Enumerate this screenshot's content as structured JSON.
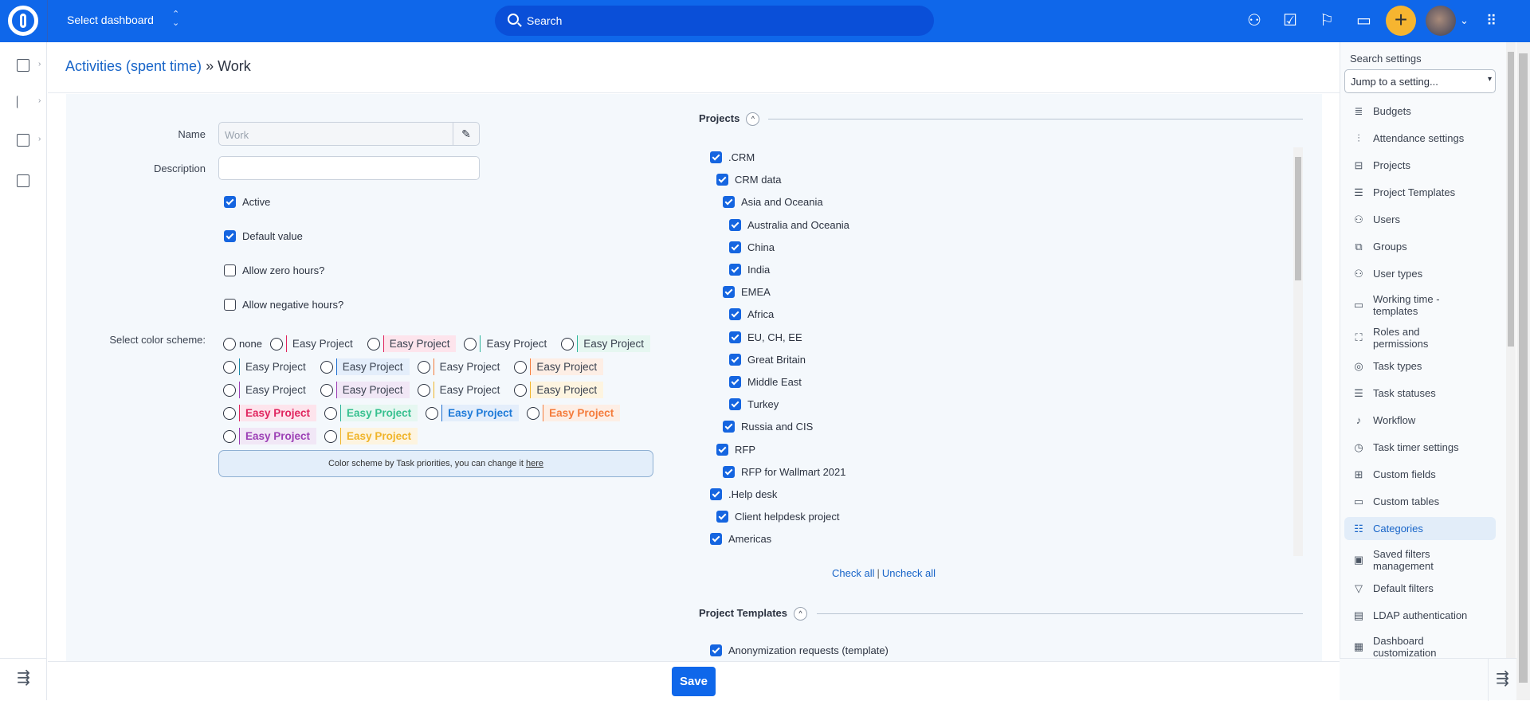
{
  "topbar": {
    "dashboard_label": "Select dashboard",
    "search_placeholder": "Search",
    "icons": [
      "user-icon",
      "tasks-icon",
      "flag-icon",
      "calendar-icon",
      "plus-icon",
      "avatar",
      "apps-grid-icon"
    ]
  },
  "breadcrumb": {
    "parent": "Activities (spent time)",
    "separator": "»",
    "current": "Work"
  },
  "form": {
    "name_label": "Name",
    "name_value": "Work",
    "description_label": "Description",
    "description_value": "",
    "checkboxes": [
      {
        "label": "Active",
        "checked": true
      },
      {
        "label": "Default value",
        "checked": true
      },
      {
        "label": "Allow zero hours?",
        "checked": false
      },
      {
        "label": "Allow negative hours?",
        "checked": false
      }
    ],
    "color_scheme_label": "Select color scheme:",
    "color_scheme_rows": [
      [
        {
          "label": "none"
        },
        {
          "label": "Easy Project",
          "border": "#e0245e",
          "bg": "",
          "text": "#3a4250",
          "bold": false
        },
        {
          "label": "Easy Project",
          "border": "#e0245e",
          "bg": "#fde4ec",
          "text": "#3a4250",
          "bold": false
        },
        {
          "label": "Easy Project",
          "border": "#2bb39a",
          "bg": "",
          "text": "#3a4250",
          "bold": false
        },
        {
          "label": "Easy Project",
          "border": "#2bb39a",
          "bg": "#e6f7f1",
          "text": "#3a4250",
          "bold": false
        }
      ],
      [
        {
          "label": "Easy Project",
          "border": "#1e88a8",
          "bg": "",
          "text": "#3a4250",
          "bold": false
        },
        {
          "label": "Easy Project",
          "border": "#1e6fd0",
          "bg": "#e4eefb",
          "text": "#3a4250",
          "bold": false
        },
        {
          "label": "Easy Project",
          "border": "#f47b3b",
          "bg": "",
          "text": "#3a4250",
          "bold": false
        },
        {
          "label": "Easy Project",
          "border": "#f47b3b",
          "bg": "#fdeee5",
          "text": "#3a4250",
          "bold": false
        }
      ],
      [
        {
          "label": "Easy Project",
          "border": "#9c3fb5",
          "bg": "",
          "text": "#3a4250",
          "bold": false
        },
        {
          "label": "Easy Project",
          "border": "#9c3fb5",
          "bg": "#f1e7f6",
          "text": "#3a4250",
          "bold": false
        },
        {
          "label": "Easy Project",
          "border": "#f0b429",
          "bg": "",
          "text": "#3a4250",
          "bold": false
        },
        {
          "label": "Easy Project",
          "border": "#f0b429",
          "bg": "#fdf4e0",
          "text": "#3a4250",
          "bold": false
        }
      ],
      [
        {
          "label": "Easy Project",
          "border": "#e0245e",
          "bg": "#fde4ec",
          "text": "#e0245e",
          "bold": true
        },
        {
          "label": "Easy Project",
          "border": "#2bb39a",
          "bg": "#e6f7f1",
          "text": "#36c08f",
          "bold": true
        },
        {
          "label": "Easy Project",
          "border": "#1e6fd0",
          "bg": "#e4eefb",
          "text": "#1e7ad8",
          "bold": true
        },
        {
          "label": "Easy Project",
          "border": "#f47b3b",
          "bg": "#fdeee5",
          "text": "#f47b3b",
          "bold": true
        }
      ],
      [
        {
          "label": "Easy Project",
          "border": "#9c3fb5",
          "bg": "#f1e7f6",
          "text": "#9c3fb5",
          "bold": true
        },
        {
          "label": "Easy Project",
          "border": "#f0b429",
          "bg": "#fdf4e0",
          "text": "#f0b429",
          "bold": true
        }
      ]
    ],
    "note_text": "Color scheme by Task priorities, you can change it ",
    "note_link": "here"
  },
  "projects": {
    "title": "Projects",
    "items": [
      {
        "label": ".CRM",
        "depth": 0,
        "checked": true
      },
      {
        "label": "CRM data",
        "depth": 1,
        "checked": true
      },
      {
        "label": "Asia and Oceania",
        "depth": 2,
        "checked": true
      },
      {
        "label": "Australia and Oceania",
        "depth": 3,
        "checked": true
      },
      {
        "label": "China",
        "depth": 3,
        "checked": true
      },
      {
        "label": "India",
        "depth": 3,
        "checked": true
      },
      {
        "label": "EMEA",
        "depth": 2,
        "checked": true
      },
      {
        "label": "Africa",
        "depth": 3,
        "checked": true
      },
      {
        "label": "EU, CH, EE",
        "depth": 3,
        "checked": true
      },
      {
        "label": "Great Britain",
        "depth": 3,
        "checked": true
      },
      {
        "label": "Middle East",
        "depth": 3,
        "checked": true
      },
      {
        "label": "Turkey",
        "depth": 3,
        "checked": true
      },
      {
        "label": "Russia and CIS",
        "depth": 2,
        "checked": true
      },
      {
        "label": "RFP",
        "depth": 1,
        "checked": true
      },
      {
        "label": "RFP for Wallmart 2021",
        "depth": 2,
        "checked": true
      },
      {
        "label": ".Help desk",
        "depth": 0,
        "checked": true
      },
      {
        "label": "Client helpdesk project",
        "depth": 1,
        "checked": true
      },
      {
        "label": "Americas",
        "depth": 0,
        "checked": true
      },
      {
        "label": "",
        "depth": 1,
        "checked": true
      }
    ],
    "check_all": "Check all",
    "uncheck_all": "Uncheck all"
  },
  "project_templates": {
    "title": "Project Templates",
    "items": [
      {
        "label": "Anonymization requests (template)",
        "checked": true
      }
    ]
  },
  "save_label": "Save",
  "settings_panel": {
    "search_label": "Search settings",
    "jump_placeholder": "Jump to a setting...",
    "items": [
      {
        "label": "Budgets",
        "icon": "database-icon",
        "glyph": "≣"
      },
      {
        "label": "Attendance settings",
        "icon": "sliders-icon",
        "glyph": "⫶"
      },
      {
        "label": "Projects",
        "icon": "project-tree-icon",
        "glyph": "⊟"
      },
      {
        "label": "Project Templates",
        "icon": "template-icon",
        "glyph": "☰"
      },
      {
        "label": "Users",
        "icon": "user-icon",
        "glyph": "⚇"
      },
      {
        "label": "Groups",
        "icon": "groups-icon",
        "glyph": "⧉"
      },
      {
        "label": "User types",
        "icon": "user-types-icon",
        "glyph": "⚇"
      },
      {
        "label": "Working time - templates",
        "icon": "calendar-icon",
        "glyph": "▭"
      },
      {
        "label": "Roles and permissions",
        "icon": "roles-icon",
        "glyph": "⛶"
      },
      {
        "label": "Task types",
        "icon": "target-icon",
        "glyph": "◎"
      },
      {
        "label": "Task statuses",
        "icon": "status-list-icon",
        "glyph": "☰"
      },
      {
        "label": "Workflow",
        "icon": "workflow-icon",
        "glyph": "♪"
      },
      {
        "label": "Task timer settings",
        "icon": "clock-icon",
        "glyph": "◷"
      },
      {
        "label": "Custom fields",
        "icon": "plus-box-icon",
        "glyph": "⊞"
      },
      {
        "label": "Custom tables",
        "icon": "table-icon",
        "glyph": "▭"
      },
      {
        "label": "Categories",
        "icon": "categories-icon",
        "glyph": "☷",
        "active": true
      },
      {
        "label": "Saved filters management",
        "icon": "save-icon",
        "glyph": "▣"
      },
      {
        "label": "Default filters",
        "icon": "filter-icon",
        "glyph": "▽"
      },
      {
        "label": "LDAP authentication",
        "icon": "server-icon",
        "glyph": "▤"
      },
      {
        "label": "Dashboard customization",
        "icon": "dashboard-icon",
        "glyph": "▦"
      }
    ]
  },
  "colors": {
    "brand": "#0f67ea",
    "accent": "#f6b530",
    "form_bg": "#f4f8fc",
    "link": "#1764c8"
  }
}
